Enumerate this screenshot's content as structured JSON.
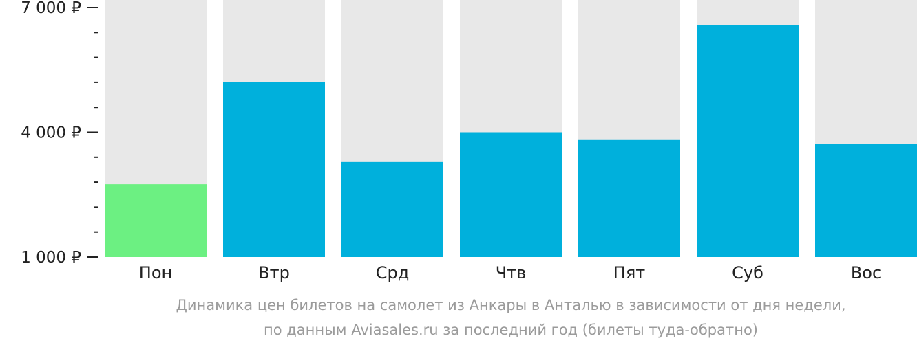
{
  "chart_data": {
    "type": "bar",
    "categories": [
      "Пон",
      "Втр",
      "Срд",
      "Чтв",
      "Пят",
      "Суб",
      "Вос"
    ],
    "values": [
      2750,
      5200,
      3300,
      4000,
      3830,
      6580,
      3720
    ],
    "highlight_index": 0,
    "ylim": [
      1000,
      7000
    ],
    "ytick_labels": [
      {
        "value": 7000,
        "label": "7 000 ₽"
      },
      {
        "value": 4000,
        "label": "4 000 ₽"
      },
      {
        "value": 1000,
        "label": "1 000 ₽"
      }
    ],
    "minor_tick_step": 600,
    "caption_lines": [
      "Динамика цен билетов на самолет из Анкары в Анталью в зависимости от дня недели,",
      "по данным Aviasales.ru за последний год (билеты туда-обратно)"
    ],
    "grid": false
  },
  "colors": {
    "bar": "#00b0dc",
    "highlight": "#6cf082",
    "track": "#e8e8e8",
    "axis_text": "#222222",
    "caption": "#9b9b9b"
  }
}
